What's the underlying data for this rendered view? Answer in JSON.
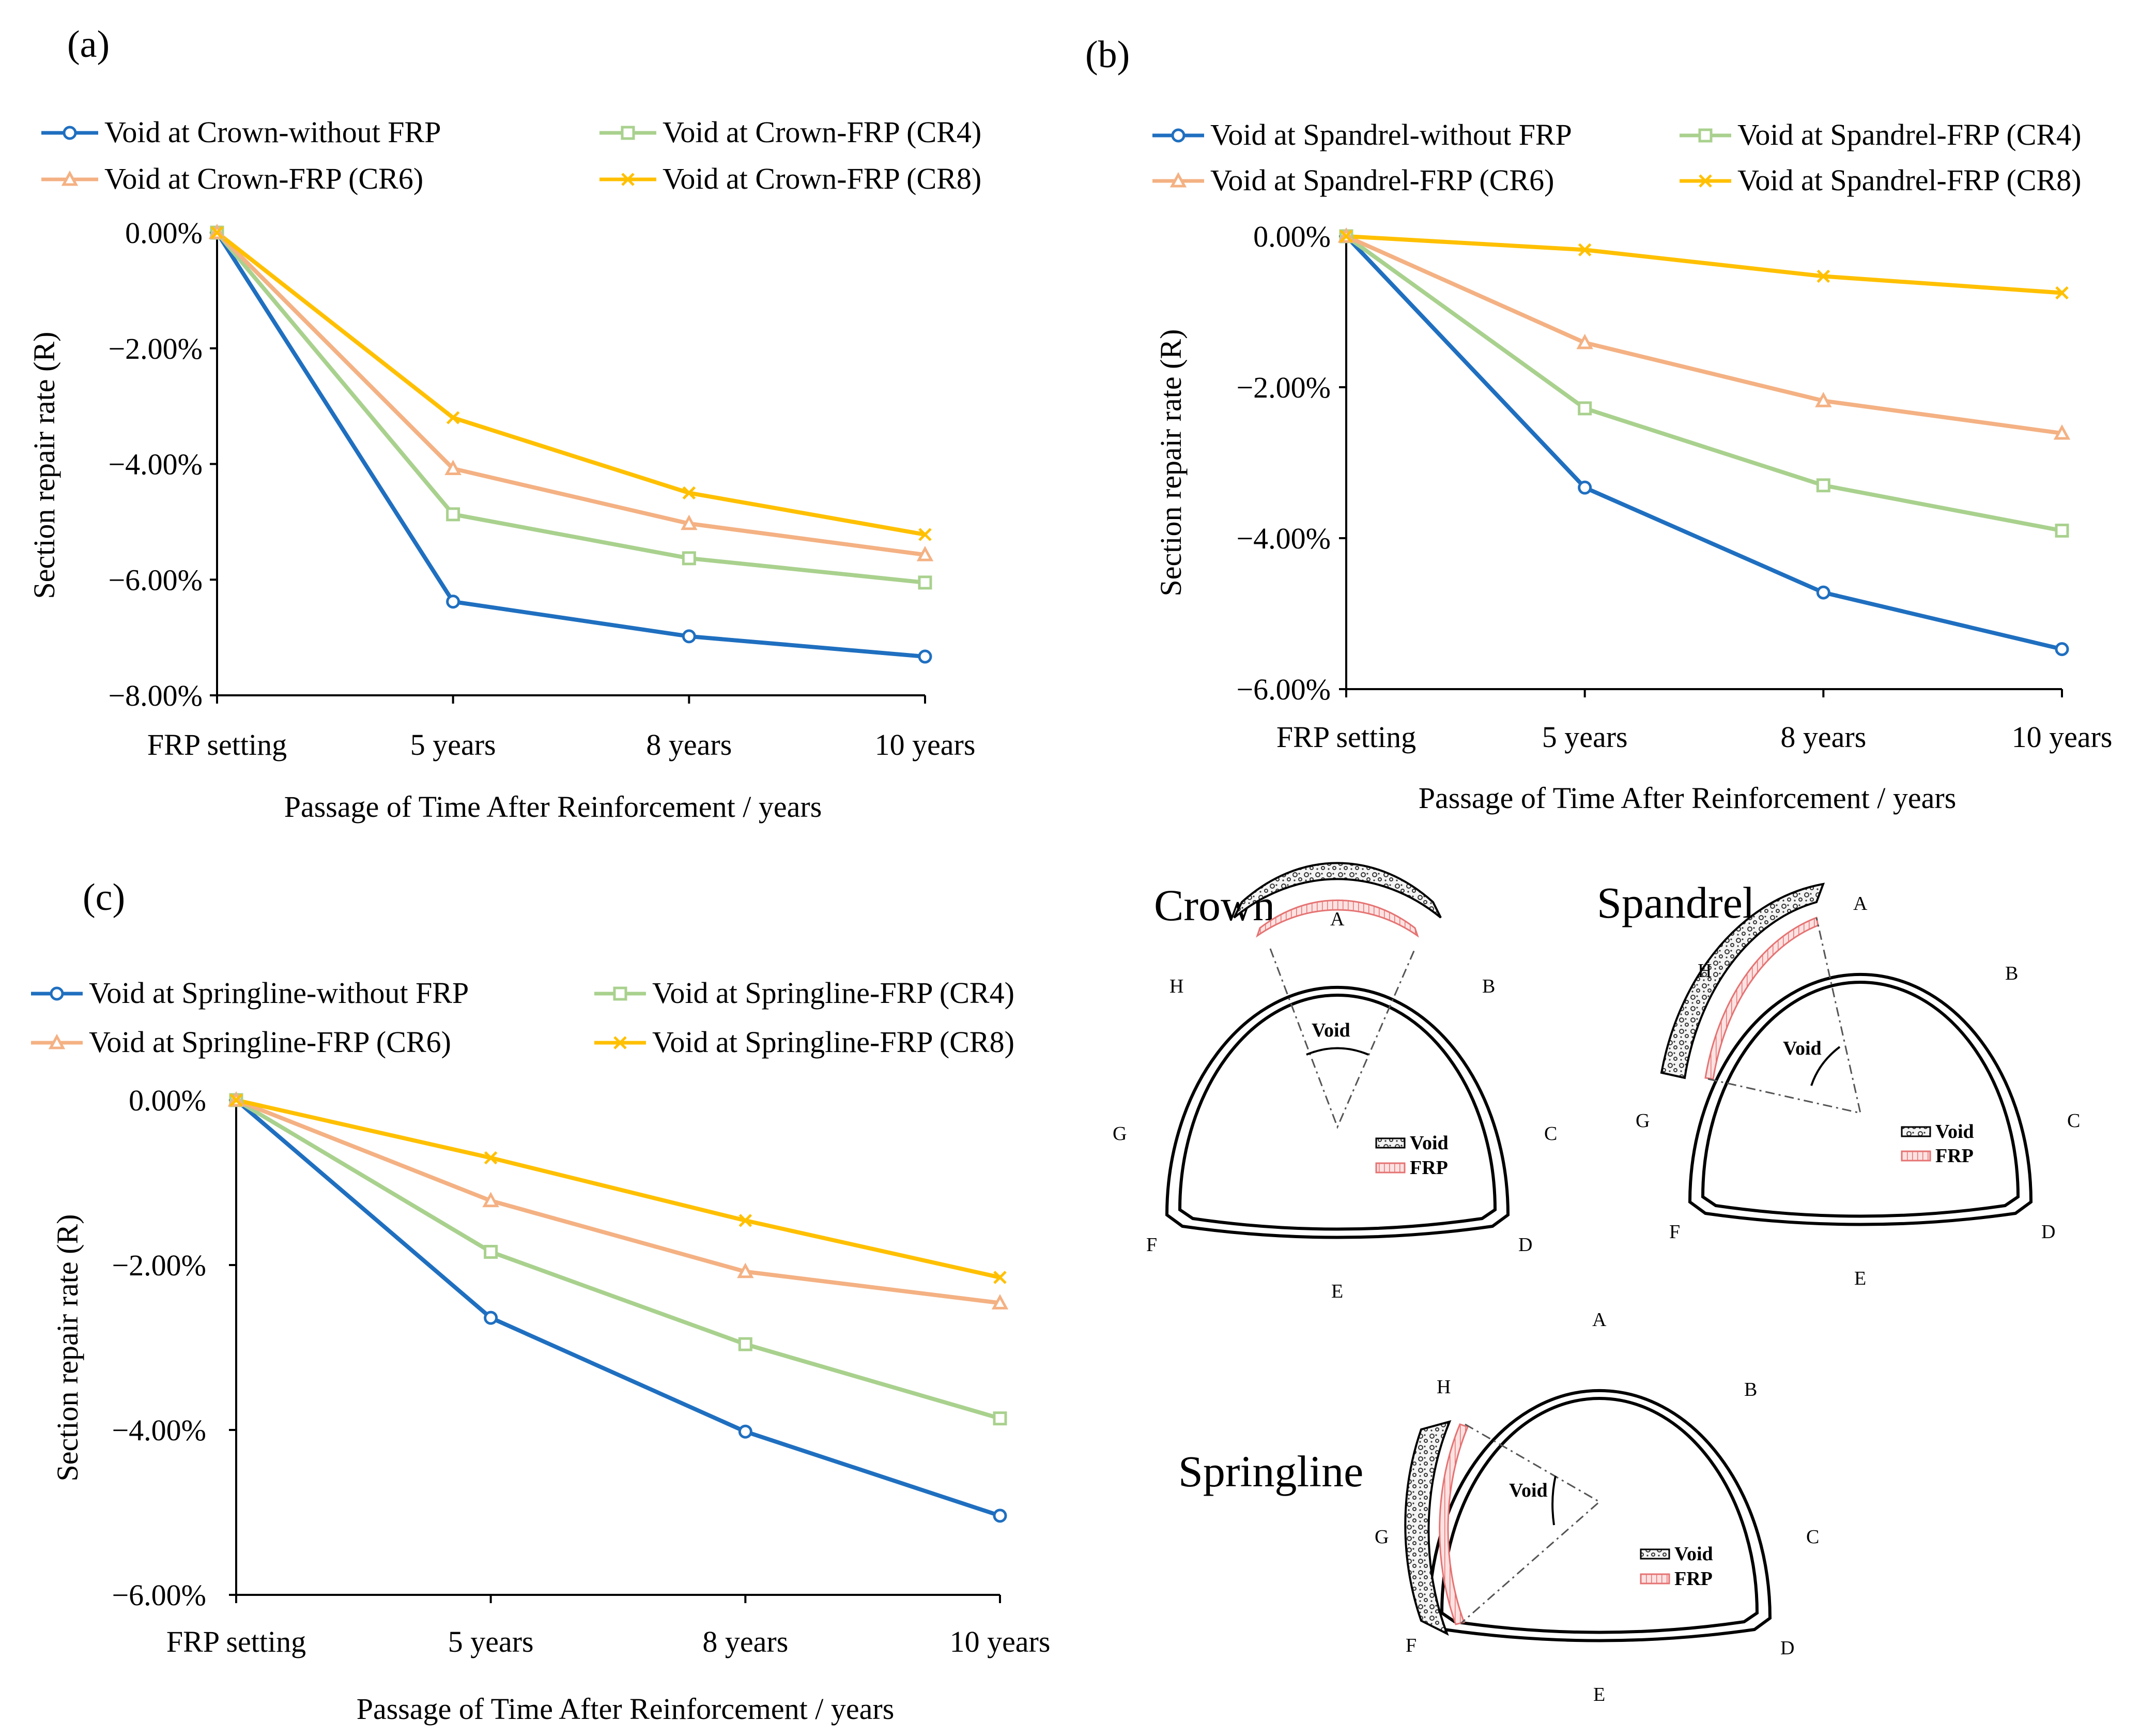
{
  "chart_data": [
    {
      "type": "line",
      "panel_label": "(a)",
      "categories": [
        "FRP setting",
        "5 years",
        "8 years",
        "10 years"
      ],
      "xlabel": "Passage of Time After Reinforcement / years",
      "ylabel": "Section repair rate (R)",
      "ylim": [
        -0.08,
        0
      ],
      "yticks": [
        0,
        -0.02,
        -0.04,
        -0.06,
        -0.08
      ],
      "ytick_labels": [
        "0.00%",
        "−2.00%",
        "−4.00%",
        "−6.00%",
        "−8.00%"
      ],
      "legend_position": "top",
      "series": [
        {
          "name": "Void at Crown-without FRP",
          "color": "#1F6FC0",
          "marker": "circle",
          "values": [
            0,
            -0.0638,
            -0.0698,
            -0.0733
          ]
        },
        {
          "name": "Void at Crown-FRP (CR4)",
          "color": "#A9D18E",
          "marker": "square",
          "values": [
            0,
            -0.0487,
            -0.0563,
            -0.0605
          ]
        },
        {
          "name": "Void at Crown-FRP (CR6)",
          "color": "#F4B183",
          "marker": "triangle",
          "values": [
            0,
            -0.0408,
            -0.0503,
            -0.0557
          ]
        },
        {
          "name": "Void at Crown-FRP (CR8)",
          "color": "#FFC000",
          "marker": "x",
          "values": [
            0,
            -0.032,
            -0.045,
            -0.0522
          ]
        }
      ]
    },
    {
      "type": "line",
      "panel_label": "(b)",
      "categories": [
        "FRP setting",
        "5 years",
        "8 years",
        "10 years"
      ],
      "xlabel": "Passage of Time After Reinforcement  / years",
      "ylabel": "Section repair rate (R)",
      "ylim": [
        -0.06,
        0
      ],
      "yticks": [
        0,
        -0.02,
        -0.04,
        -0.06
      ],
      "ytick_labels": [
        "0.00%",
        "−2.00%",
        "−4.00%",
        "−6.00%"
      ],
      "legend_position": "top",
      "series": [
        {
          "name": "Void at Spandrel-without FRP",
          "color": "#1F6FC0",
          "marker": "circle",
          "values": [
            0,
            -0.0333,
            -0.0472,
            -0.0547
          ]
        },
        {
          "name": "Void at Spandrel-FRP (CR4)",
          "color": "#A9D18E",
          "marker": "square",
          "values": [
            0,
            -0.0228,
            -0.033,
            -0.039
          ]
        },
        {
          "name": "Void at Spandrel-FRP (CR6)",
          "color": "#F4B183",
          "marker": "triangle",
          "values": [
            0,
            -0.0141,
            -0.0218,
            -0.0261
          ]
        },
        {
          "name": "Void at Spandrel-FRP (CR8)",
          "color": "#FFC000",
          "marker": "x",
          "values": [
            0,
            -0.0018,
            -0.0053,
            -0.0075
          ]
        }
      ]
    },
    {
      "type": "line",
      "panel_label": "(c)",
      "categories": [
        "FRP setting",
        "5 years",
        "8 years",
        "10 years"
      ],
      "xlabel": "Passage of Time After Reinforcement   / years",
      "ylabel": "Section repair rate (R)",
      "ylim": [
        -0.06,
        0
      ],
      "yticks": [
        0,
        -0.02,
        -0.04,
        -0.06
      ],
      "ytick_labels": [
        "0.00%",
        "−2.00%",
        "−4.00%",
        "−6.00%"
      ],
      "legend_position": "top",
      "series": [
        {
          "name": "Void at Springline-without FRP",
          "color": "#1F6FC0",
          "marker": "circle",
          "values": [
            0,
            -0.0264,
            -0.0402,
            -0.0504
          ]
        },
        {
          "name": "Void at Springline-FRP (CR4)",
          "color": "#A9D18E",
          "marker": "square",
          "values": [
            0,
            -0.0184,
            -0.0296,
            -0.0386
          ]
        },
        {
          "name": "Void at Springline-FRP (CR6)",
          "color": "#F4B183",
          "marker": "triangle",
          "values": [
            0,
            -0.0122,
            -0.0208,
            -0.0246
          ]
        },
        {
          "name": "Void at Springline-FRP (CR8)",
          "color": "#FFC000",
          "marker": "x",
          "values": [
            0,
            -0.007,
            -0.0146,
            -0.0215
          ]
        }
      ]
    }
  ],
  "diagrams": {
    "point_labels": [
      "A",
      "B",
      "C",
      "D",
      "E",
      "F",
      "G",
      "H"
    ],
    "void_label": "Void",
    "legend_void": "Void",
    "legend_frp": "FRP",
    "crown": {
      "title": "Crown"
    },
    "spandrel": {
      "title": "Spandrel"
    },
    "springline": {
      "title": "Springline"
    }
  }
}
